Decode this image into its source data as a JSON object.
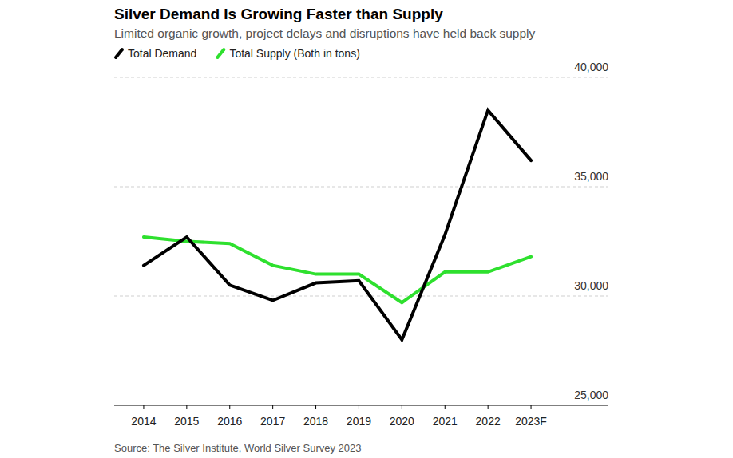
{
  "chart_data": {
    "type": "line",
    "title": "Silver Demand Is Growing Faster than Supply",
    "subtitle": "Limited organic growth, project delays and disruptions have held back supply",
    "source": "Source: The Silver Institute, World Silver Survey 2023",
    "categories": [
      "2014",
      "2015",
      "2016",
      "2017",
      "2018",
      "2019",
      "2020",
      "2021",
      "2022",
      "2023F"
    ],
    "series": [
      {
        "name": "Total Demand",
        "color": "#000000",
        "values": [
          31400,
          32700,
          30500,
          29800,
          30600,
          30700,
          28000,
          32800,
          38500,
          36200
        ]
      },
      {
        "name": "Total Supply (Both in tons)",
        "color": "#2ee02e",
        "values": [
          32700,
          32500,
          32400,
          31400,
          31000,
          31000,
          29700,
          31100,
          31100,
          31800
        ]
      }
    ],
    "ylim": [
      25000,
      40000
    ],
    "yticks": [
      {
        "value": 25000,
        "label": "25,000"
      },
      {
        "value": 30000,
        "label": "30,000"
      },
      {
        "value": 35000,
        "label": "35,000"
      },
      {
        "value": 40000,
        "label": "40,000"
      }
    ],
    "grid": true,
    "legend": "top-left"
  }
}
